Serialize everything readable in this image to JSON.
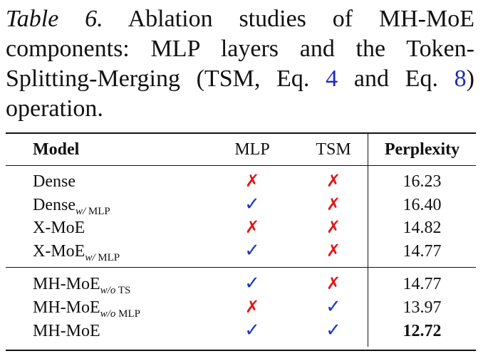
{
  "caption": {
    "label": "Table 6.",
    "text_before_ref1": " Ablation studies of MH-MoE components: MLP layers and the Token-Splitting-Merging (TSM, Eq. ",
    "ref1": "4",
    "text_between": " and Eq. ",
    "ref2": "8",
    "text_after": ") operation."
  },
  "table": {
    "headers": {
      "model": "Model",
      "mlp": "MLP",
      "tsm": "TSM",
      "perplexity": "Perplexity"
    },
    "symbols": {
      "check": "✓",
      "cross": "✗",
      "check_color": "#1a35c9",
      "cross_color": "#e01818"
    },
    "group1": [
      {
        "model": "Dense",
        "sub_italic": "",
        "sub_rest": "",
        "mlp": "✗",
        "tsm": "✗",
        "perplexity": "16.23"
      },
      {
        "model": "Dense",
        "sub_italic": "w/",
        "sub_rest": " MLP",
        "mlp": "✓",
        "tsm": "✗",
        "perplexity": "16.40"
      },
      {
        "model": "X-MoE",
        "sub_italic": "",
        "sub_rest": "",
        "mlp": "✗",
        "tsm": "✗",
        "perplexity": "14.82"
      },
      {
        "model": "X-MoE",
        "sub_italic": "w/",
        "sub_rest": " MLP",
        "mlp": "✓",
        "tsm": "✗",
        "perplexity": "14.77"
      }
    ],
    "group2": [
      {
        "model": "MH-MoE",
        "sub_italic": "w/o",
        "sub_rest": " TS",
        "mlp": "✓",
        "tsm": "✗",
        "perplexity": "14.77"
      },
      {
        "model": "MH-MoE",
        "sub_italic": "w/o",
        "sub_rest": " MLP",
        "mlp": "✗",
        "tsm": "✓",
        "perplexity": "13.97"
      },
      {
        "model": "MH-MoE",
        "sub_italic": "",
        "sub_rest": "",
        "mlp": "✓",
        "tsm": "✓",
        "perplexity": "12.72"
      }
    ]
  }
}
